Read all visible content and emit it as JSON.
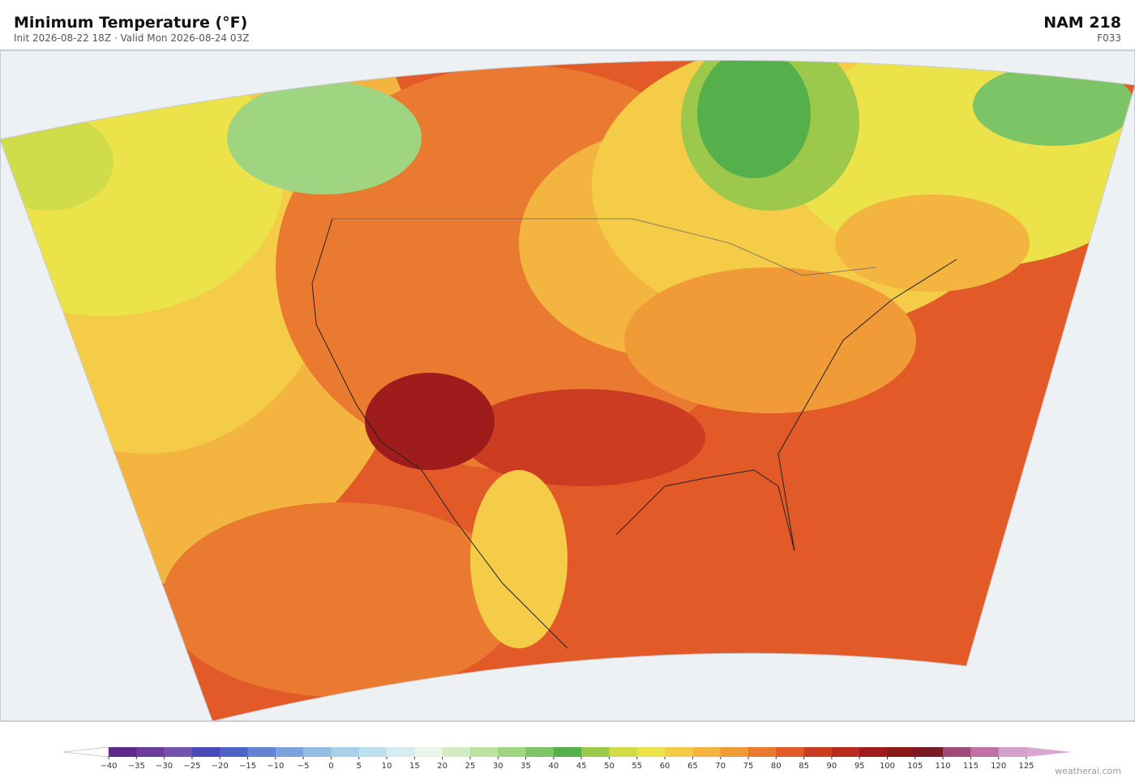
{
  "header": {
    "title": "Minimum Temperature  (°F)",
    "subtitle": "Init 2026-08-22 18Z  ·  Valid Mon 2026-08-24 03Z",
    "model": "NAM  218",
    "forecast": "F033"
  },
  "colorbar": {
    "ticks": [
      {
        "value": -40,
        "label": "−40"
      },
      {
        "value": -35,
        "label": "−35"
      },
      {
        "value": -30,
        "label": "−30"
      },
      {
        "value": -25,
        "label": "−25"
      },
      {
        "value": -20,
        "label": "−20"
      },
      {
        "value": -15,
        "label": "−15"
      },
      {
        "value": -10,
        "label": "−10"
      },
      {
        "value": -5,
        "label": "−5"
      },
      0,
      5,
      10,
      15,
      20,
      25,
      30,
      35,
      40,
      45,
      50,
      55,
      60,
      65,
      70,
      75,
      80,
      85,
      90,
      95,
      100,
      105,
      110,
      115,
      120,
      125
    ],
    "colors": [
      "#5b2a8a",
      "#6b3c9c",
      "#7453ad",
      "#4a4ab8",
      "#4e62c8",
      "#6483d4",
      "#7ea3dc",
      "#93bde2",
      "#a8d0e8",
      "#c0e0ee",
      "#d6ecf0",
      "#e8f4ea",
      "#d4ecc4",
      "#bde2a0",
      "#9fd480",
      "#7cc466",
      "#55b04c",
      "#9cc94c",
      "#d0dc4a",
      "#ece24a",
      "#f4cc48",
      "#f4b440",
      "#f09a38",
      "#ea7a30",
      "#e25a28",
      "#cc3c22",
      "#b82a20",
      "#9e1c1c",
      "#861818",
      "#7a1a22",
      "#a04a7a",
      "#c072a8",
      "#d4a0cc"
    ],
    "under": "#ffffff",
    "over": "#d8a8d0"
  },
  "credit": "weatherai.com"
}
